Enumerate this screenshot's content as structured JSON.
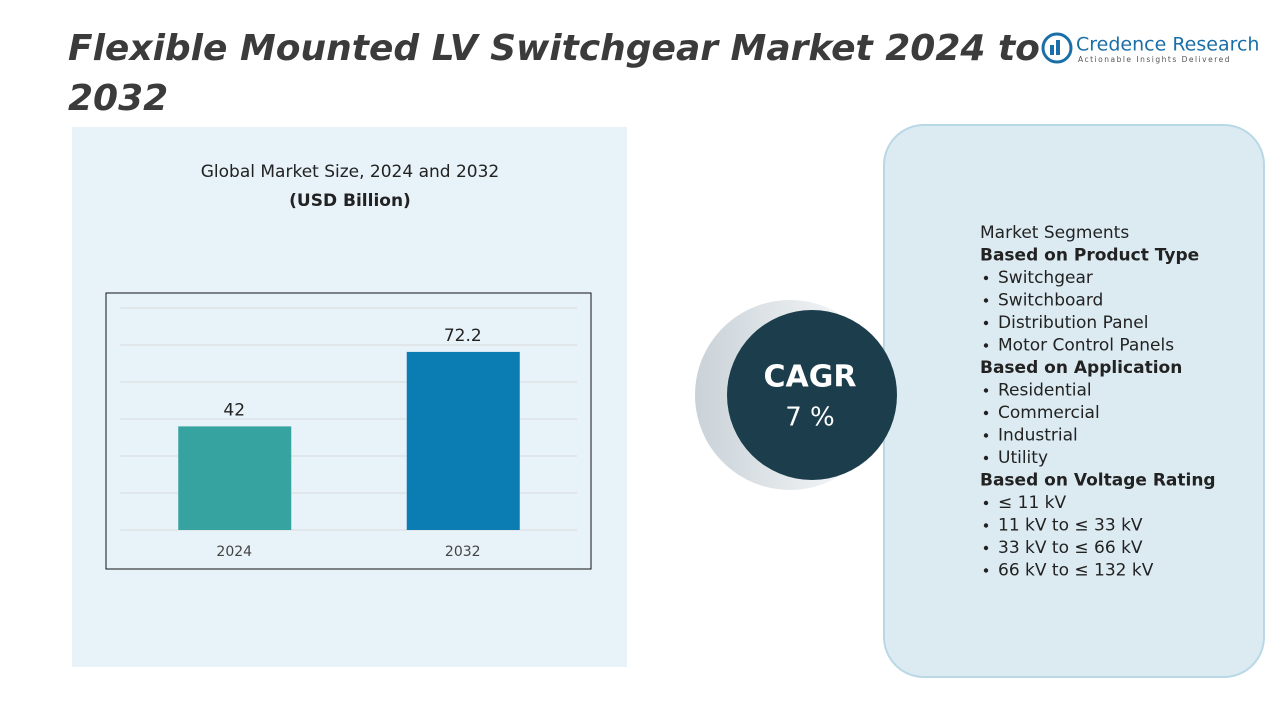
{
  "title": "Flexible Mounted LV Switchgear Market 2024 to 2032",
  "logo": {
    "name": "Credence Research",
    "tagline": "Actionable Insights Delivered"
  },
  "chart_data": {
    "type": "bar",
    "title": "Global Market Size, 2024 and 2032",
    "subtitle": "(USD Billion)",
    "categories": [
      "2024",
      "2032"
    ],
    "values": [
      42,
      72.2
    ],
    "colors": [
      "#36a3a0",
      "#0b7db2"
    ],
    "ylim": [
      0,
      90
    ],
    "yticks": [
      0,
      15,
      30,
      45,
      60,
      75,
      90
    ],
    "grid": true
  },
  "cagr": {
    "label": "CAGR",
    "value": "7 %"
  },
  "segments": {
    "title": "Market Segments",
    "groups": [
      {
        "heading": "Based on Product Type",
        "items": [
          "Switchgear",
          "Switchboard",
          "Distribution Panel",
          "Motor Control Panels"
        ]
      },
      {
        "heading": "Based on Application",
        "items": [
          "Residential",
          "Commercial",
          "Industrial",
          "Utility"
        ]
      },
      {
        "heading": "Based on Voltage Rating",
        "items": [
          "≤ 11 kV",
          "11 kV to ≤ 33 kV",
          "33 kV to ≤ 66 kV",
          "66 kV to ≤ 132 kV"
        ]
      }
    ]
  }
}
